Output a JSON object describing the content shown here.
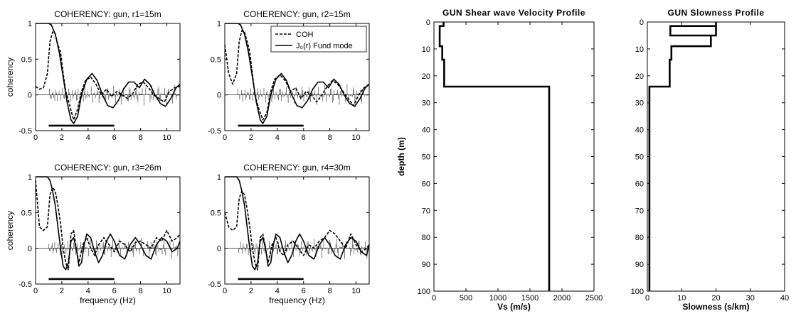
{
  "chart_data": [
    {
      "type": "line",
      "title": "COHERENCY: gun, r1=15m",
      "xlabel": "",
      "ylabel": "coherency",
      "xlim": [
        0,
        11
      ],
      "ylim": [
        -0.5,
        1
      ],
      "xticks": [
        "0",
        "2",
        "4",
        "6",
        "8",
        "10"
      ],
      "yticks": [
        "-0.5",
        "0",
        "0.5",
        "1"
      ],
      "band": [
        1,
        6
      ],
      "series": [
        {
          "name": "COH",
          "style": "dashed",
          "x": [
            0,
            0.3,
            0.6,
            0.9,
            1.1,
            1.3,
            1.5,
            1.7,
            1.9,
            2.1,
            2.3,
            2.6,
            2.9,
            3.2,
            3.5,
            3.8,
            4.2,
            4.6,
            5.0,
            5.4,
            5.8,
            6.2,
            6.6,
            7.0,
            7.4,
            7.8,
            8.2,
            8.6,
            9.0,
            9.4,
            9.8,
            10.2,
            10.6,
            11
          ],
          "y": [
            0.12,
            0.08,
            0.1,
            0.3,
            0.75,
            0.88,
            0.85,
            0.7,
            0.6,
            0.3,
            0.05,
            -0.15,
            -0.35,
            -0.2,
            0.05,
            0.2,
            0.25,
            0.15,
            0.0,
            0.08,
            -0.02,
            0.05,
            0.0,
            -0.05,
            0.02,
            0.15,
            0.18,
            0.1,
            0.0,
            -0.05,
            -0.1,
            0.05,
            0.1,
            0.12
          ]
        },
        {
          "name": "J0(r) Fund mode",
          "style": "solid",
          "x": [
            0,
            1.0,
            1.2,
            1.5,
            1.8,
            2.1,
            2.4,
            2.7,
            2.9,
            3.2,
            3.5,
            3.9,
            4.3,
            4.7,
            5.1,
            5.5,
            5.9,
            6.3,
            6.7,
            7.1,
            7.5,
            7.9,
            8.3,
            8.7,
            9.1,
            9.5,
            9.9,
            10.3,
            10.7,
            11
          ],
          "y": [
            1,
            1,
            0.98,
            0.85,
            0.6,
            0.25,
            -0.1,
            -0.35,
            -0.4,
            -0.3,
            0.0,
            0.22,
            0.3,
            0.2,
            0.0,
            -0.15,
            -0.18,
            -0.08,
            0.08,
            0.18,
            0.18,
            0.1,
            0.22,
            0.15,
            0.0,
            -0.12,
            -0.16,
            -0.05,
            0.1,
            0.15
          ]
        }
      ]
    },
    {
      "type": "line",
      "title": "COHERENCY: gun, r2=15m",
      "xlabel": "",
      "ylabel": "",
      "xlim": [
        0,
        11
      ],
      "ylim": [
        -0.5,
        1
      ],
      "xticks": [
        "0",
        "2",
        "4",
        "6",
        "8",
        "10"
      ],
      "yticks": [
        "-0.5",
        "0",
        "0.5",
        "1"
      ],
      "band": [
        1,
        6
      ],
      "legend": {
        "position": "top-right",
        "entries": [
          "COH",
          "J₀(r) Fund mode"
        ]
      },
      "series": [
        {
          "name": "COH",
          "style": "dashed",
          "x": [
            0,
            0.3,
            0.6,
            0.9,
            1.1,
            1.3,
            1.5,
            1.7,
            1.9,
            2.1,
            2.3,
            2.6,
            2.9,
            3.2,
            3.5,
            3.8,
            4.2,
            4.6,
            5.0,
            5.4,
            5.8,
            6.2,
            6.6,
            7.0,
            7.4,
            7.8,
            8.2,
            8.6,
            9.0,
            9.4,
            9.8,
            10.2,
            10.6,
            11
          ],
          "y": [
            0.7,
            0.3,
            0.15,
            0.3,
            0.75,
            0.9,
            0.88,
            0.75,
            0.6,
            0.3,
            0.0,
            -0.2,
            -0.35,
            -0.25,
            0.05,
            0.22,
            0.28,
            0.2,
            0.05,
            0.1,
            -0.05,
            0.05,
            0.0,
            -0.1,
            0.0,
            0.12,
            0.2,
            0.15,
            0.05,
            -0.05,
            -0.15,
            0.0,
            0.1,
            0.15
          ]
        },
        {
          "name": "J0(r) Fund mode",
          "style": "solid",
          "x": [
            0,
            1.0,
            1.2,
            1.5,
            1.8,
            2.1,
            2.4,
            2.7,
            2.9,
            3.2,
            3.5,
            3.9,
            4.3,
            4.7,
            5.1,
            5.5,
            5.9,
            6.3,
            6.7,
            7.1,
            7.5,
            7.9,
            8.3,
            8.7,
            9.1,
            9.5,
            9.9,
            10.3,
            10.7,
            11
          ],
          "y": [
            1,
            1,
            0.98,
            0.85,
            0.6,
            0.25,
            -0.1,
            -0.35,
            -0.4,
            -0.3,
            0.0,
            0.22,
            0.3,
            0.2,
            0.0,
            -0.15,
            -0.18,
            -0.08,
            0.08,
            0.18,
            0.18,
            0.1,
            0.22,
            0.15,
            0.0,
            -0.12,
            -0.16,
            -0.05,
            0.1,
            0.15
          ]
        }
      ]
    },
    {
      "type": "line",
      "title": "COHERENCY: gun, r3=26m",
      "xlabel": "frequency (Hz)",
      "ylabel": "coherency",
      "xlim": [
        0,
        11
      ],
      "ylim": [
        -0.5,
        1
      ],
      "xticks": [
        "0",
        "2",
        "4",
        "6",
        "8",
        "10"
      ],
      "yticks": [
        "-0.5",
        "0",
        "0.5",
        "1"
      ],
      "band": [
        1,
        6
      ],
      "series": [
        {
          "name": "COH",
          "style": "dashed",
          "x": [
            0,
            0.3,
            0.6,
            0.9,
            1.1,
            1.3,
            1.5,
            1.7,
            1.9,
            2.1,
            2.3,
            2.5,
            2.7,
            2.9,
            3.1,
            3.3,
            3.6,
            3.9,
            4.2,
            4.5,
            4.8,
            5.2,
            5.6,
            6.0,
            6.4,
            6.8,
            7.2,
            7.6,
            8.0,
            8.4,
            8.8,
            9.2,
            9.6,
            10.0,
            10.4,
            10.8,
            11
          ],
          "y": [
            0.95,
            0.3,
            0.25,
            0.3,
            0.75,
            0.85,
            0.8,
            0.6,
            0.35,
            0.0,
            -0.2,
            -0.3,
            0.2,
            0.25,
            0.0,
            -0.2,
            0.05,
            0.15,
            0.0,
            -0.1,
            0.05,
            0.15,
            0.05,
            -0.05,
            0.1,
            0.05,
            -0.05,
            0.08,
            0.1,
            0.05,
            0.0,
            0.15,
            0.1,
            0.25,
            0.1,
            0.15,
            0.2
          ]
        },
        {
          "name": "J0(r) Fund mode",
          "style": "solid",
          "x": [
            0,
            0.9,
            1.1,
            1.3,
            1.5,
            1.7,
            1.9,
            2.1,
            2.3,
            2.5,
            2.7,
            2.9,
            3.1,
            3.3,
            3.5,
            3.7,
            3.9,
            4.2,
            4.5,
            4.8,
            5.1,
            5.4,
            5.7,
            6.0,
            6.4,
            6.8,
            7.2,
            7.6,
            8.0,
            8.4,
            8.8,
            9.2,
            9.6,
            10.0,
            10.4,
            10.8,
            11
          ],
          "y": [
            1,
            1,
            0.95,
            0.8,
            0.6,
            0.3,
            0.0,
            -0.25,
            -0.3,
            -0.2,
            0.1,
            0.15,
            0.0,
            -0.25,
            -0.2,
            0.05,
            0.2,
            0.15,
            -0.05,
            -0.2,
            -0.1,
            0.1,
            0.2,
            0.1,
            -0.1,
            -0.15,
            0.05,
            0.15,
            0.05,
            -0.1,
            -0.15,
            0.05,
            0.15,
            0.1,
            -0.05,
            0.0,
            0.1
          ]
        }
      ]
    },
    {
      "type": "line",
      "title": "COHERENCY: gun, r4=30m",
      "xlabel": "frequency (Hz)",
      "ylabel": "",
      "xlim": [
        0,
        11
      ],
      "ylim": [
        -0.5,
        1
      ],
      "xticks": [
        "0",
        "2",
        "4",
        "6",
        "8",
        "10"
      ],
      "yticks": [
        "-0.5",
        "0",
        "0.5",
        "1"
      ],
      "band": [
        1,
        6
      ],
      "series": [
        {
          "name": "COH",
          "style": "dashed",
          "x": [
            0,
            0.3,
            0.6,
            0.9,
            1.1,
            1.3,
            1.5,
            1.7,
            1.9,
            2.1,
            2.3,
            2.5,
            2.7,
            2.9,
            3.1,
            3.3,
            3.6,
            3.9,
            4.2,
            4.5,
            4.8,
            5.2,
            5.6,
            6.0,
            6.4,
            6.8,
            7.2,
            7.6,
            8.0,
            8.4,
            8.8,
            9.2,
            9.6,
            10.0,
            10.4,
            10.8,
            11
          ],
          "y": [
            0.5,
            0.3,
            0.25,
            0.3,
            0.7,
            0.8,
            0.75,
            0.55,
            0.3,
            0.0,
            -0.2,
            -0.3,
            0.15,
            0.2,
            0.0,
            -0.2,
            0.05,
            0.15,
            -0.05,
            -0.1,
            0.05,
            0.1,
            0.0,
            -0.1,
            0.05,
            0.0,
            0.1,
            0.15,
            0.25,
            0.2,
            0.1,
            0.0,
            0.2,
            0.05,
            -0.05,
            0.0,
            0.05
          ]
        },
        {
          "name": "J0(r) Fund mode",
          "style": "solid",
          "x": [
            0,
            0.9,
            1.1,
            1.3,
            1.5,
            1.7,
            1.9,
            2.1,
            2.3,
            2.5,
            2.7,
            2.9,
            3.1,
            3.3,
            3.5,
            3.7,
            3.9,
            4.2,
            4.5,
            4.8,
            5.1,
            5.4,
            5.7,
            6.0,
            6.4,
            6.8,
            7.2,
            7.6,
            8.0,
            8.4,
            8.8,
            9.2,
            9.6,
            10.0,
            10.4,
            10.8,
            11
          ],
          "y": [
            1,
            1,
            0.95,
            0.8,
            0.6,
            0.3,
            0.0,
            -0.25,
            -0.3,
            -0.2,
            0.1,
            0.15,
            0.0,
            -0.25,
            -0.2,
            0.05,
            0.2,
            0.15,
            -0.05,
            -0.2,
            -0.1,
            0.1,
            0.2,
            0.1,
            -0.1,
            -0.15,
            0.05,
            0.15,
            0.05,
            -0.1,
            -0.15,
            0.05,
            0.15,
            0.1,
            -0.05,
            -0.1,
            0.05
          ]
        }
      ]
    },
    {
      "type": "line",
      "title": "GUN  Shear  wave  Velocity  Profile",
      "xlabel": "Vs  (m/s)",
      "ylabel": "depth  (m)",
      "xlim": [
        0,
        2500
      ],
      "ylim": [
        0,
        100
      ],
      "y_reversed": true,
      "xticks": [
        "0",
        "500",
        "1000",
        "1500",
        "2000",
        "2500"
      ],
      "yticks": [
        "0",
        "10",
        "20",
        "30",
        "40",
        "50",
        "60",
        "70",
        "80",
        "90",
        "100"
      ],
      "series": [
        {
          "name": "",
          "style": "step",
          "x": [
            150,
            150,
            90,
            90,
            130,
            130,
            160,
            160,
            1800,
            1800
          ],
          "y": [
            0,
            1.5,
            1.5,
            9,
            9,
            14,
            14,
            24,
            24,
            100
          ]
        }
      ]
    },
    {
      "type": "line",
      "title": "GUN  Slowness  Profile",
      "xlabel": "Slowness  (s/km)",
      "ylabel": "",
      "xlim": [
        0,
        40
      ],
      "ylim": [
        0,
        100
      ],
      "y_reversed": true,
      "xticks": [
        "0",
        "10",
        "20",
        "30",
        "40"
      ],
      "yticks": [
        "0",
        "10",
        "20",
        "30",
        "40",
        "50",
        "60",
        "70",
        "80",
        "90",
        "100"
      ],
      "series": [
        {
          "name": "",
          "style": "step",
          "x": [
            20,
            20,
            6.7,
            6.7,
            20,
            20,
            18.5,
            18.5,
            7,
            7,
            6.5,
            6.5,
            0.6,
            0.6
          ],
          "y": [
            0,
            5,
            5,
            1.5,
            1.5,
            5,
            5,
            9,
            9,
            14,
            14,
            24,
            24,
            100
          ]
        }
      ]
    }
  ]
}
